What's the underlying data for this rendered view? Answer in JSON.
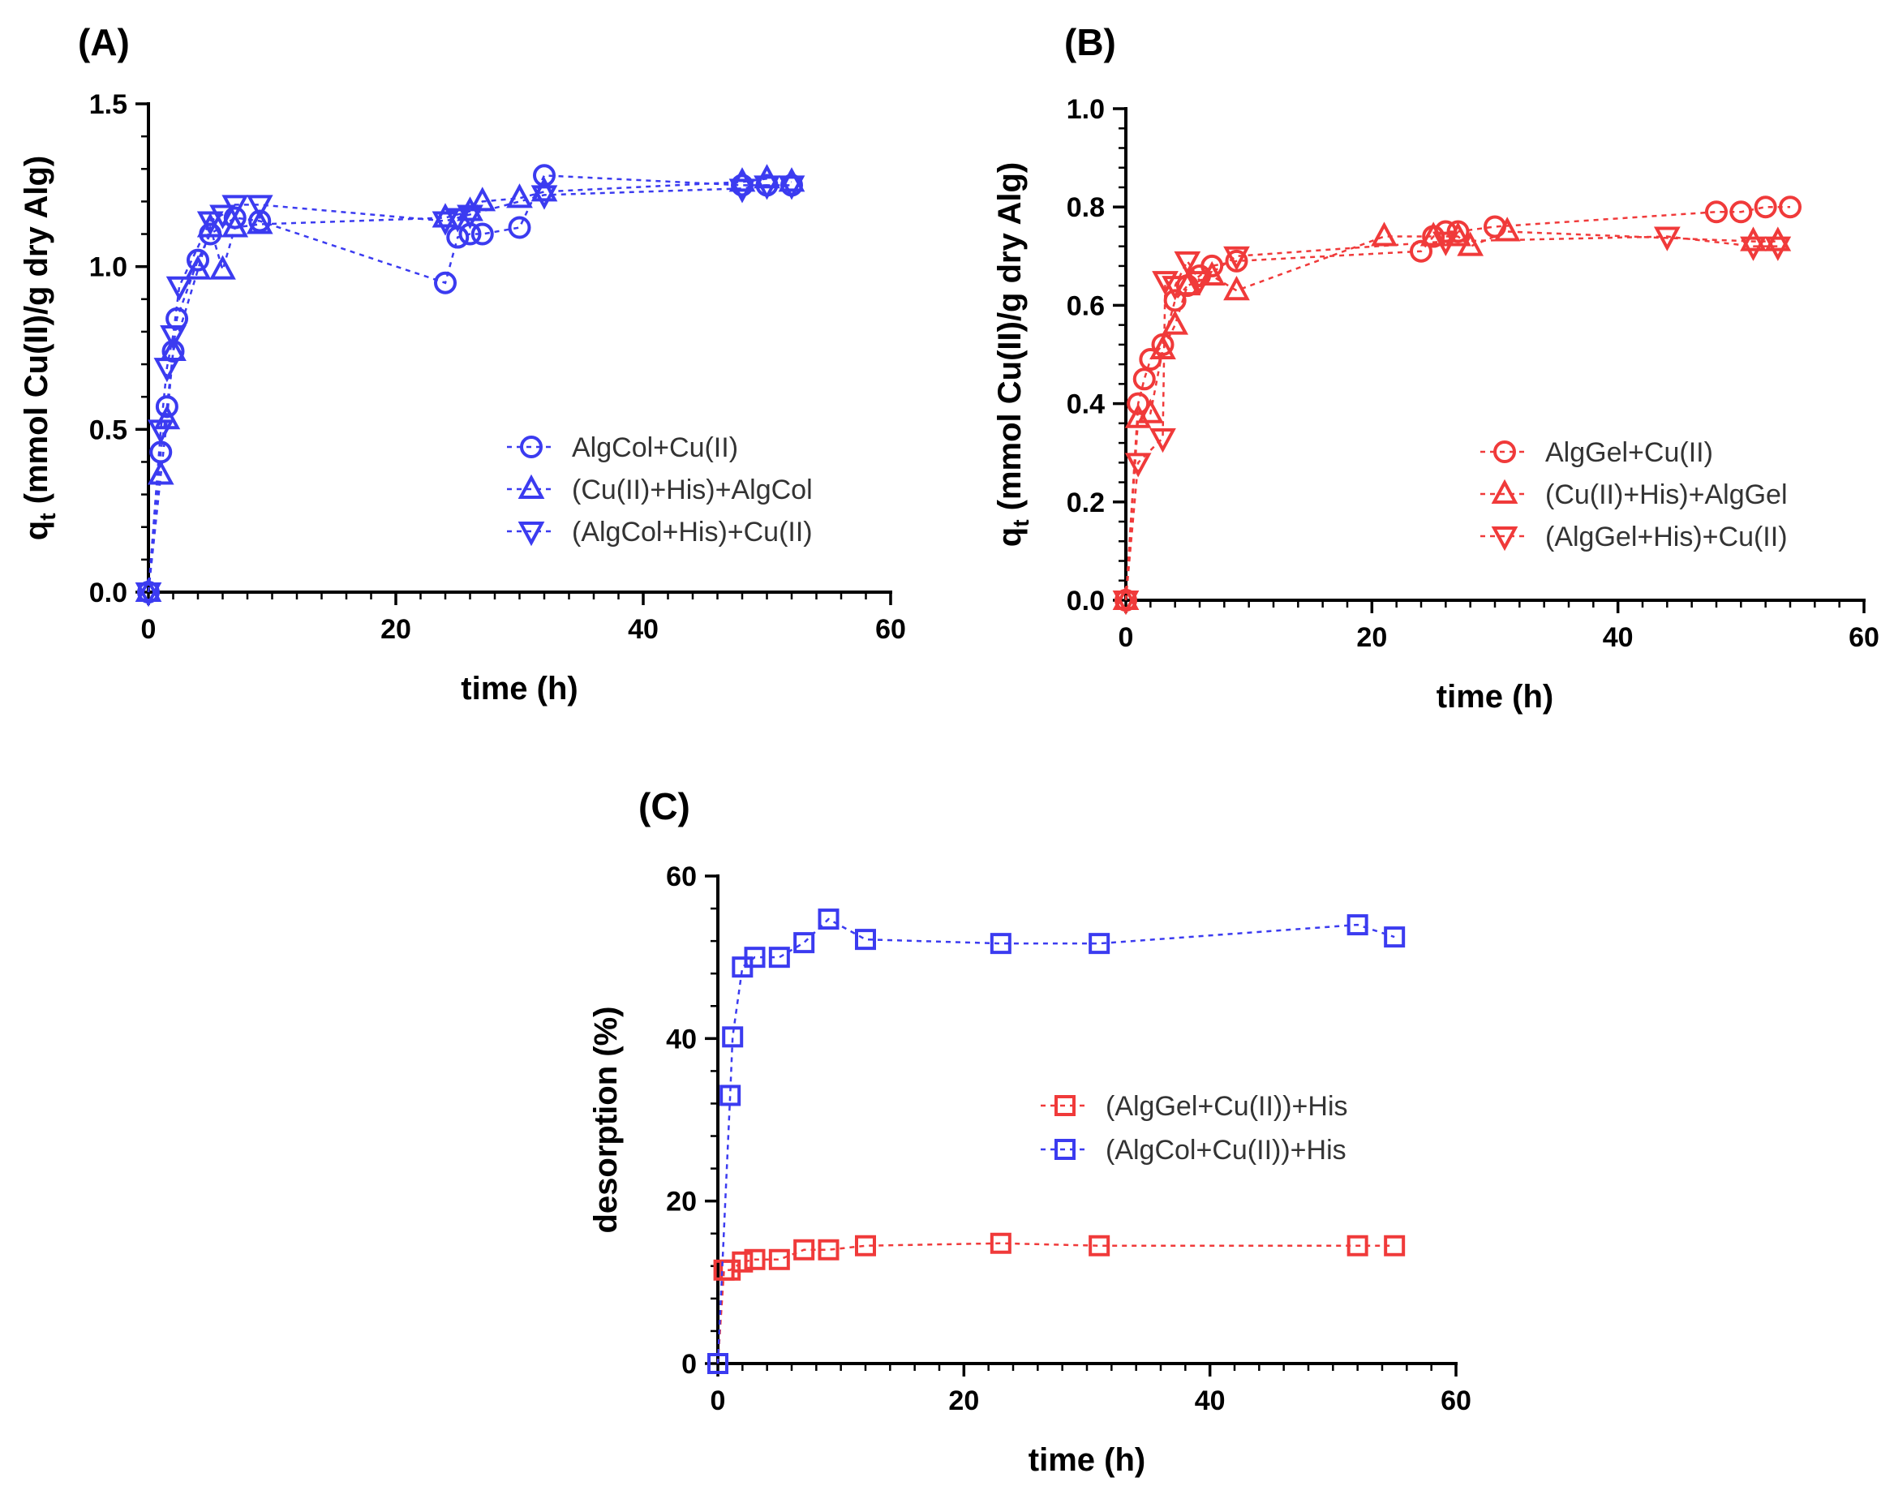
{
  "chart_data": [
    {
      "panel": "(A)",
      "type": "scatter",
      "xlabel": "time (h)",
      "ylabel_main": "q",
      "ylabel_sub": "t",
      "ylabel_rest": " (mmol Cu(II)/g dry Alg)",
      "xlim": [
        0,
        60
      ],
      "ylim": [
        0,
        1.5
      ],
      "xticks": [
        0,
        20,
        40,
        60
      ],
      "yticks": [
        0.0,
        0.5,
        1.0,
        1.5
      ],
      "ytick_labels": [
        "0.0",
        "0.5",
        "1.0",
        "1.5"
      ],
      "legend_position": "center-right",
      "color": "#3b3bf0",
      "series": [
        {
          "name": "AlgCol+Cu(II)",
          "marker": "circle",
          "x": [
            0,
            1,
            1.5,
            2,
            2.3,
            4,
            5,
            7,
            9,
            24,
            25,
            26,
            27,
            30,
            32,
            48,
            50,
            52
          ],
          "y": [
            0,
            0.43,
            0.57,
            0.74,
            0.84,
            1.02,
            1.1,
            1.15,
            1.14,
            0.95,
            1.09,
            1.1,
            1.1,
            1.12,
            1.28,
            1.25,
            1.25,
            1.25
          ]
        },
        {
          "name": "(Cu(II)+His)+AlgCol",
          "marker": "triangle-up",
          "x": [
            0,
            1,
            1.5,
            2,
            4,
            5,
            6,
            7,
            9,
            24,
            26,
            27,
            30,
            32,
            48,
            50,
            52
          ],
          "y": [
            0,
            0.36,
            0.53,
            0.74,
            0.99,
            1.12,
            0.99,
            1.12,
            1.13,
            1.15,
            1.17,
            1.2,
            1.21,
            1.23,
            1.26,
            1.27,
            1.26
          ]
        },
        {
          "name": "(AlgCol+His)+Cu(II)",
          "marker": "triangle-down",
          "x": [
            0,
            1,
            1.5,
            2,
            2.5,
            5,
            6,
            7,
            9,
            24,
            25,
            26,
            32,
            48,
            50,
            52
          ],
          "y": [
            0,
            0.5,
            0.69,
            0.79,
            0.94,
            1.14,
            1.16,
            1.19,
            1.19,
            1.14,
            1.15,
            1.16,
            1.22,
            1.24,
            1.25,
            1.25
          ]
        }
      ]
    },
    {
      "panel": "(B)",
      "type": "scatter",
      "xlabel": "time (h)",
      "ylabel_main": "q",
      "ylabel_sub": "t",
      "ylabel_rest": " (mmol Cu(II)/g dry Alg)",
      "xlim": [
        0,
        60
      ],
      "ylim": [
        0,
        1.0
      ],
      "xticks": [
        0,
        20,
        40,
        60
      ],
      "yticks": [
        0.0,
        0.2,
        0.4,
        0.6,
        0.8,
        1.0
      ],
      "ytick_labels": [
        "0.0",
        "0.2",
        "0.4",
        "0.6",
        "0.8",
        "1.0"
      ],
      "legend_position": "center-right",
      "color": "#f03a3a",
      "series": [
        {
          "name": "AlgGel+Cu(II)",
          "marker": "circle",
          "x": [
            0,
            1,
            1.5,
            2,
            3,
            4,
            5,
            6,
            7,
            9,
            24,
            25,
            26,
            27,
            30,
            48,
            50,
            52,
            54
          ],
          "y": [
            0,
            0.4,
            0.45,
            0.49,
            0.52,
            0.61,
            0.64,
            0.66,
            0.68,
            0.69,
            0.71,
            0.74,
            0.75,
            0.75,
            0.76,
            0.79,
            0.79,
            0.8,
            0.8
          ]
        },
        {
          "name": "(Cu(II)+His)+AlgGel",
          "marker": "triangle-up",
          "x": [
            0,
            1,
            2,
            3,
            4,
            5,
            7,
            9,
            21,
            25,
            27,
            28,
            31,
            51,
            53
          ],
          "y": [
            0,
            0.37,
            0.38,
            0.51,
            0.56,
            0.64,
            0.66,
            0.63,
            0.74,
            0.74,
            0.74,
            0.72,
            0.75,
            0.73,
            0.73
          ]
        },
        {
          "name": "(AlgGel+His)+Cu(II)",
          "marker": "triangle-down",
          "x": [
            0,
            1,
            3,
            3.2,
            4,
            5,
            6,
            9,
            26,
            44,
            51,
            53
          ],
          "y": [
            0,
            0.28,
            0.33,
            0.65,
            0.64,
            0.69,
            0.65,
            0.7,
            0.73,
            0.74,
            0.72,
            0.72
          ]
        }
      ]
    },
    {
      "panel": "(C)",
      "type": "scatter",
      "xlabel": "time (h)",
      "ylabel": "desorption (%)",
      "xlim": [
        0,
        60
      ],
      "ylim": [
        0,
        60
      ],
      "xticks": [
        0,
        20,
        40,
        60
      ],
      "yticks": [
        0,
        20,
        40,
        60
      ],
      "ytick_labels": [
        "0",
        "20",
        "40",
        "60"
      ],
      "legend_position": "center-right",
      "series": [
        {
          "name": "(AlgGel+Cu(II))+His",
          "marker": "square",
          "color": "#f03a3a",
          "x": [
            0,
            0.5,
            1,
            2,
            3,
            5,
            7,
            9,
            12,
            23,
            31,
            52,
            55
          ],
          "y": [
            0,
            11.5,
            11.5,
            12.5,
            12.8,
            12.8,
            14,
            14,
            14.5,
            14.8,
            14.5,
            14.5,
            14.5
          ]
        },
        {
          "name": "(AlgCol+Cu(II))+His",
          "marker": "square",
          "color": "#3b3bf0",
          "x": [
            0,
            1,
            1.2,
            2,
            3,
            5,
            7,
            9,
            12,
            23,
            31,
            52,
            55
          ],
          "y": [
            0,
            33,
            40.2,
            48.8,
            50,
            50,
            51.8,
            54.7,
            52.2,
            51.7,
            51.7,
            54,
            52.5
          ]
        }
      ]
    }
  ]
}
